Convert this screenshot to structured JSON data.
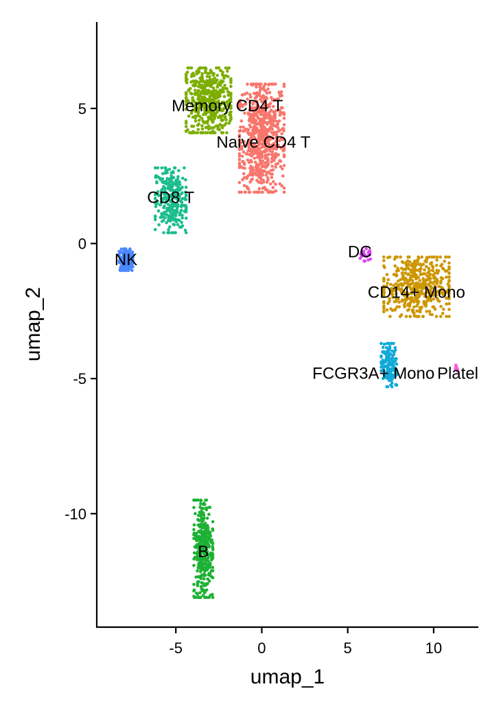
{
  "chart_data": {
    "type": "scatter",
    "title": "",
    "xlabel": "umap_1",
    "ylabel": "umap_2",
    "xlim": [
      -9.6,
      12.6
    ],
    "ylim": [
      -14.2,
      8.2
    ],
    "x_ticks": [
      -5,
      0,
      5,
      10
    ],
    "y_ticks": [
      -10,
      -5,
      0,
      5
    ],
    "x_tick_labels": [
      "-5",
      "0",
      "5",
      "10"
    ],
    "y_tick_labels": [
      "-10",
      "-5",
      "0",
      "5"
    ],
    "grid": false,
    "legend": "none",
    "clusters": [
      {
        "name": "Naive CD4 T",
        "color": "#F8766D",
        "label_x": 0.1,
        "label_y": 3.75,
        "center": [
          0.0,
          3.9
        ],
        "spread": [
          1.3,
          2.0
        ],
        "n": 700
      },
      {
        "name": "Memory CD4 T",
        "color": "#7CAE00",
        "label_x": -2.0,
        "label_y": 5.1,
        "center": [
          -3.1,
          5.3
        ],
        "spread": [
          1.3,
          1.2
        ],
        "n": 480
      },
      {
        "name": "CD14+ Mono",
        "color": "#CD9600",
        "label_x": 9.0,
        "label_y": -1.8,
        "center": [
          9.0,
          -1.6
        ],
        "spread": [
          1.9,
          1.1
        ],
        "n": 480
      },
      {
        "name": "B",
        "color": "#1DB134",
        "label_x": -3.4,
        "label_y": -11.4,
        "center": [
          -3.4,
          -11.3
        ],
        "spread": [
          0.55,
          1.8
        ],
        "n": 340
      },
      {
        "name": "CD8 T",
        "color": "#1ABD8C",
        "label_x": -5.3,
        "label_y": 1.7,
        "center": [
          -5.3,
          1.6
        ],
        "spread": [
          0.9,
          1.2
        ],
        "n": 280
      },
      {
        "name": "FCGR3A+ Mono",
        "color": "#11AAD8",
        "label_x": 6.5,
        "label_y": -4.8,
        "center": [
          7.4,
          -4.5
        ],
        "spread": [
          0.45,
          0.8
        ],
        "n": 160
      },
      {
        "name": "NK",
        "color": "#4B87FF",
        "label_x": -7.9,
        "label_y": -0.6,
        "center": [
          -7.9,
          -0.6
        ],
        "spread": [
          0.4,
          0.4
        ],
        "n": 150
      },
      {
        "name": "DC",
        "color": "#D946EF",
        "label_x": 5.7,
        "label_y": -0.3,
        "center": [
          6.0,
          -0.4
        ],
        "spread": [
          0.35,
          0.25
        ],
        "n": 25
      },
      {
        "name": "Platelet",
        "color": "#F763E0",
        "label_x": 11.8,
        "label_y": -4.8,
        "center": [
          11.3,
          -4.6
        ],
        "spread": [
          0.15,
          0.15
        ],
        "n": 8
      }
    ]
  }
}
